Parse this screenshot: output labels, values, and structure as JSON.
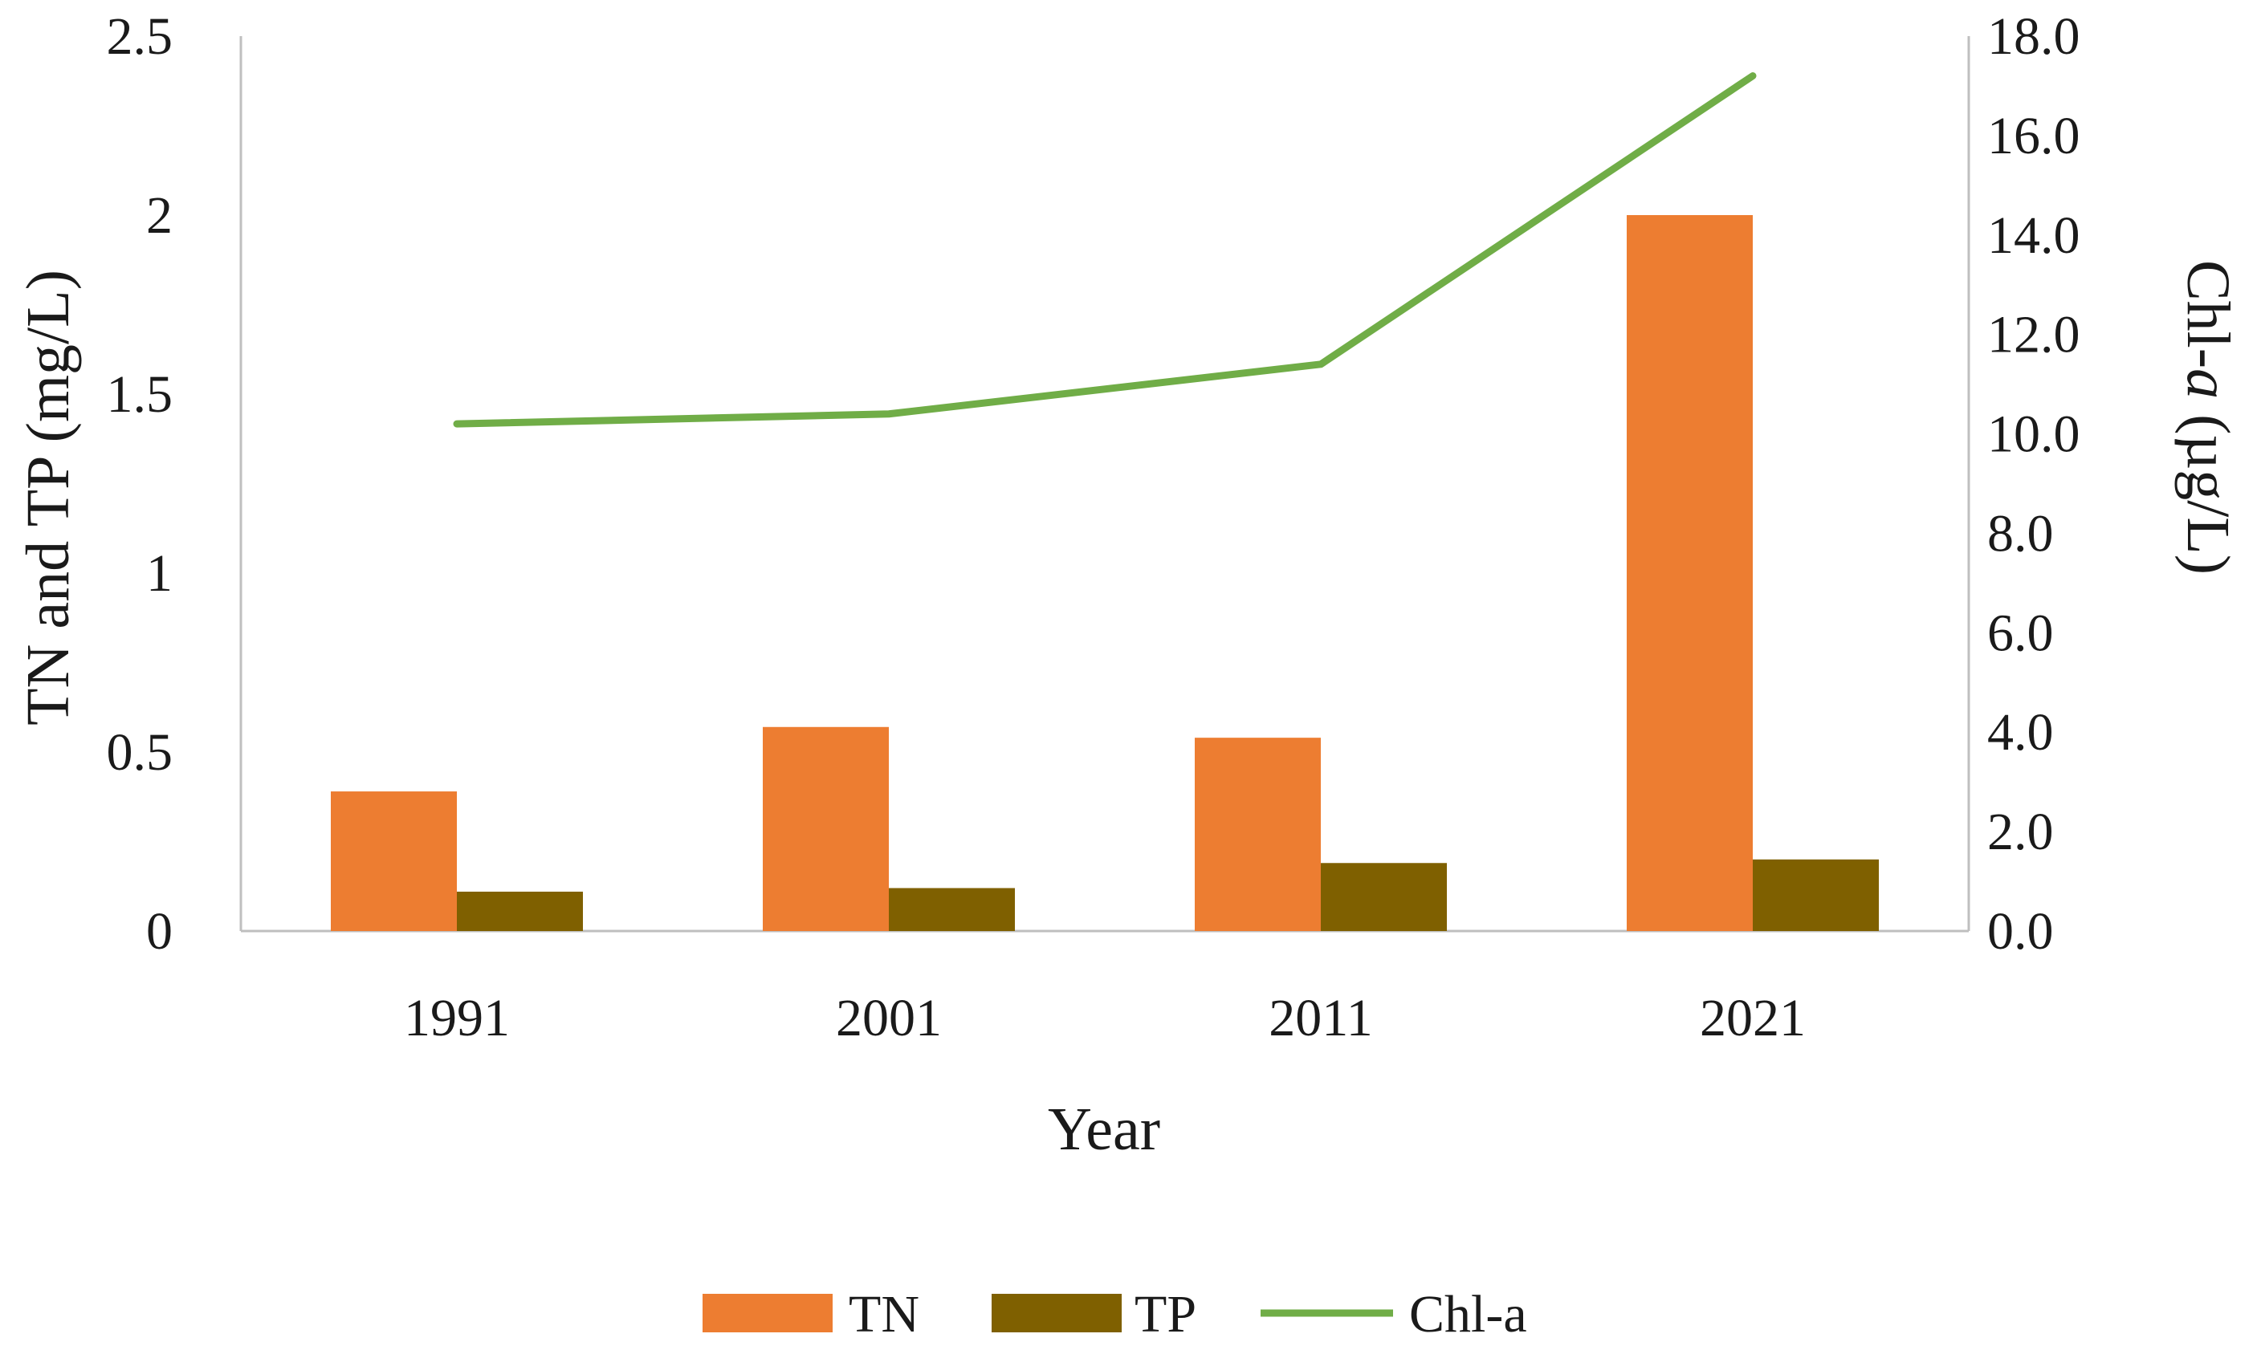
{
  "chart_data": {
    "type": "bar",
    "categories": [
      "1991",
      "2001",
      "2011",
      "2021"
    ],
    "series": [
      {
        "name": "TN",
        "type": "bar",
        "axis": "left",
        "values": [
          0.39,
          0.57,
          0.54,
          2.0
        ]
      },
      {
        "name": "TP",
        "type": "bar",
        "axis": "left",
        "values": [
          0.11,
          0.12,
          0.19,
          0.2
        ]
      },
      {
        "name": "Chl-a",
        "type": "line",
        "axis": "right",
        "values": [
          10.2,
          10.4,
          11.4,
          17.2
        ]
      }
    ],
    "xlabel": "Year",
    "ylabel": "TN and TP (mg/L)",
    "y2label_prefix": "Chl-",
    "y2label_italic": "a",
    "y2label_suffix": " (µg/L)",
    "ylim": [
      0,
      2.5
    ],
    "y2lim": [
      0,
      18
    ],
    "yticks": [
      "0",
      "0.5",
      "1",
      "1.5",
      "2",
      "2.5"
    ],
    "y2ticks": [
      "0.0",
      "2.0",
      "4.0",
      "6.0",
      "8.0",
      "10.0",
      "12.0",
      "14.0",
      "16.0",
      "18.0"
    ],
    "grid": false,
    "legend_position": "bottom",
    "colors": {
      "TN": "#ED7D31",
      "TP": "#7F6000",
      "Chl-a": "#70AD47",
      "axis": "#BFBFBF"
    }
  }
}
